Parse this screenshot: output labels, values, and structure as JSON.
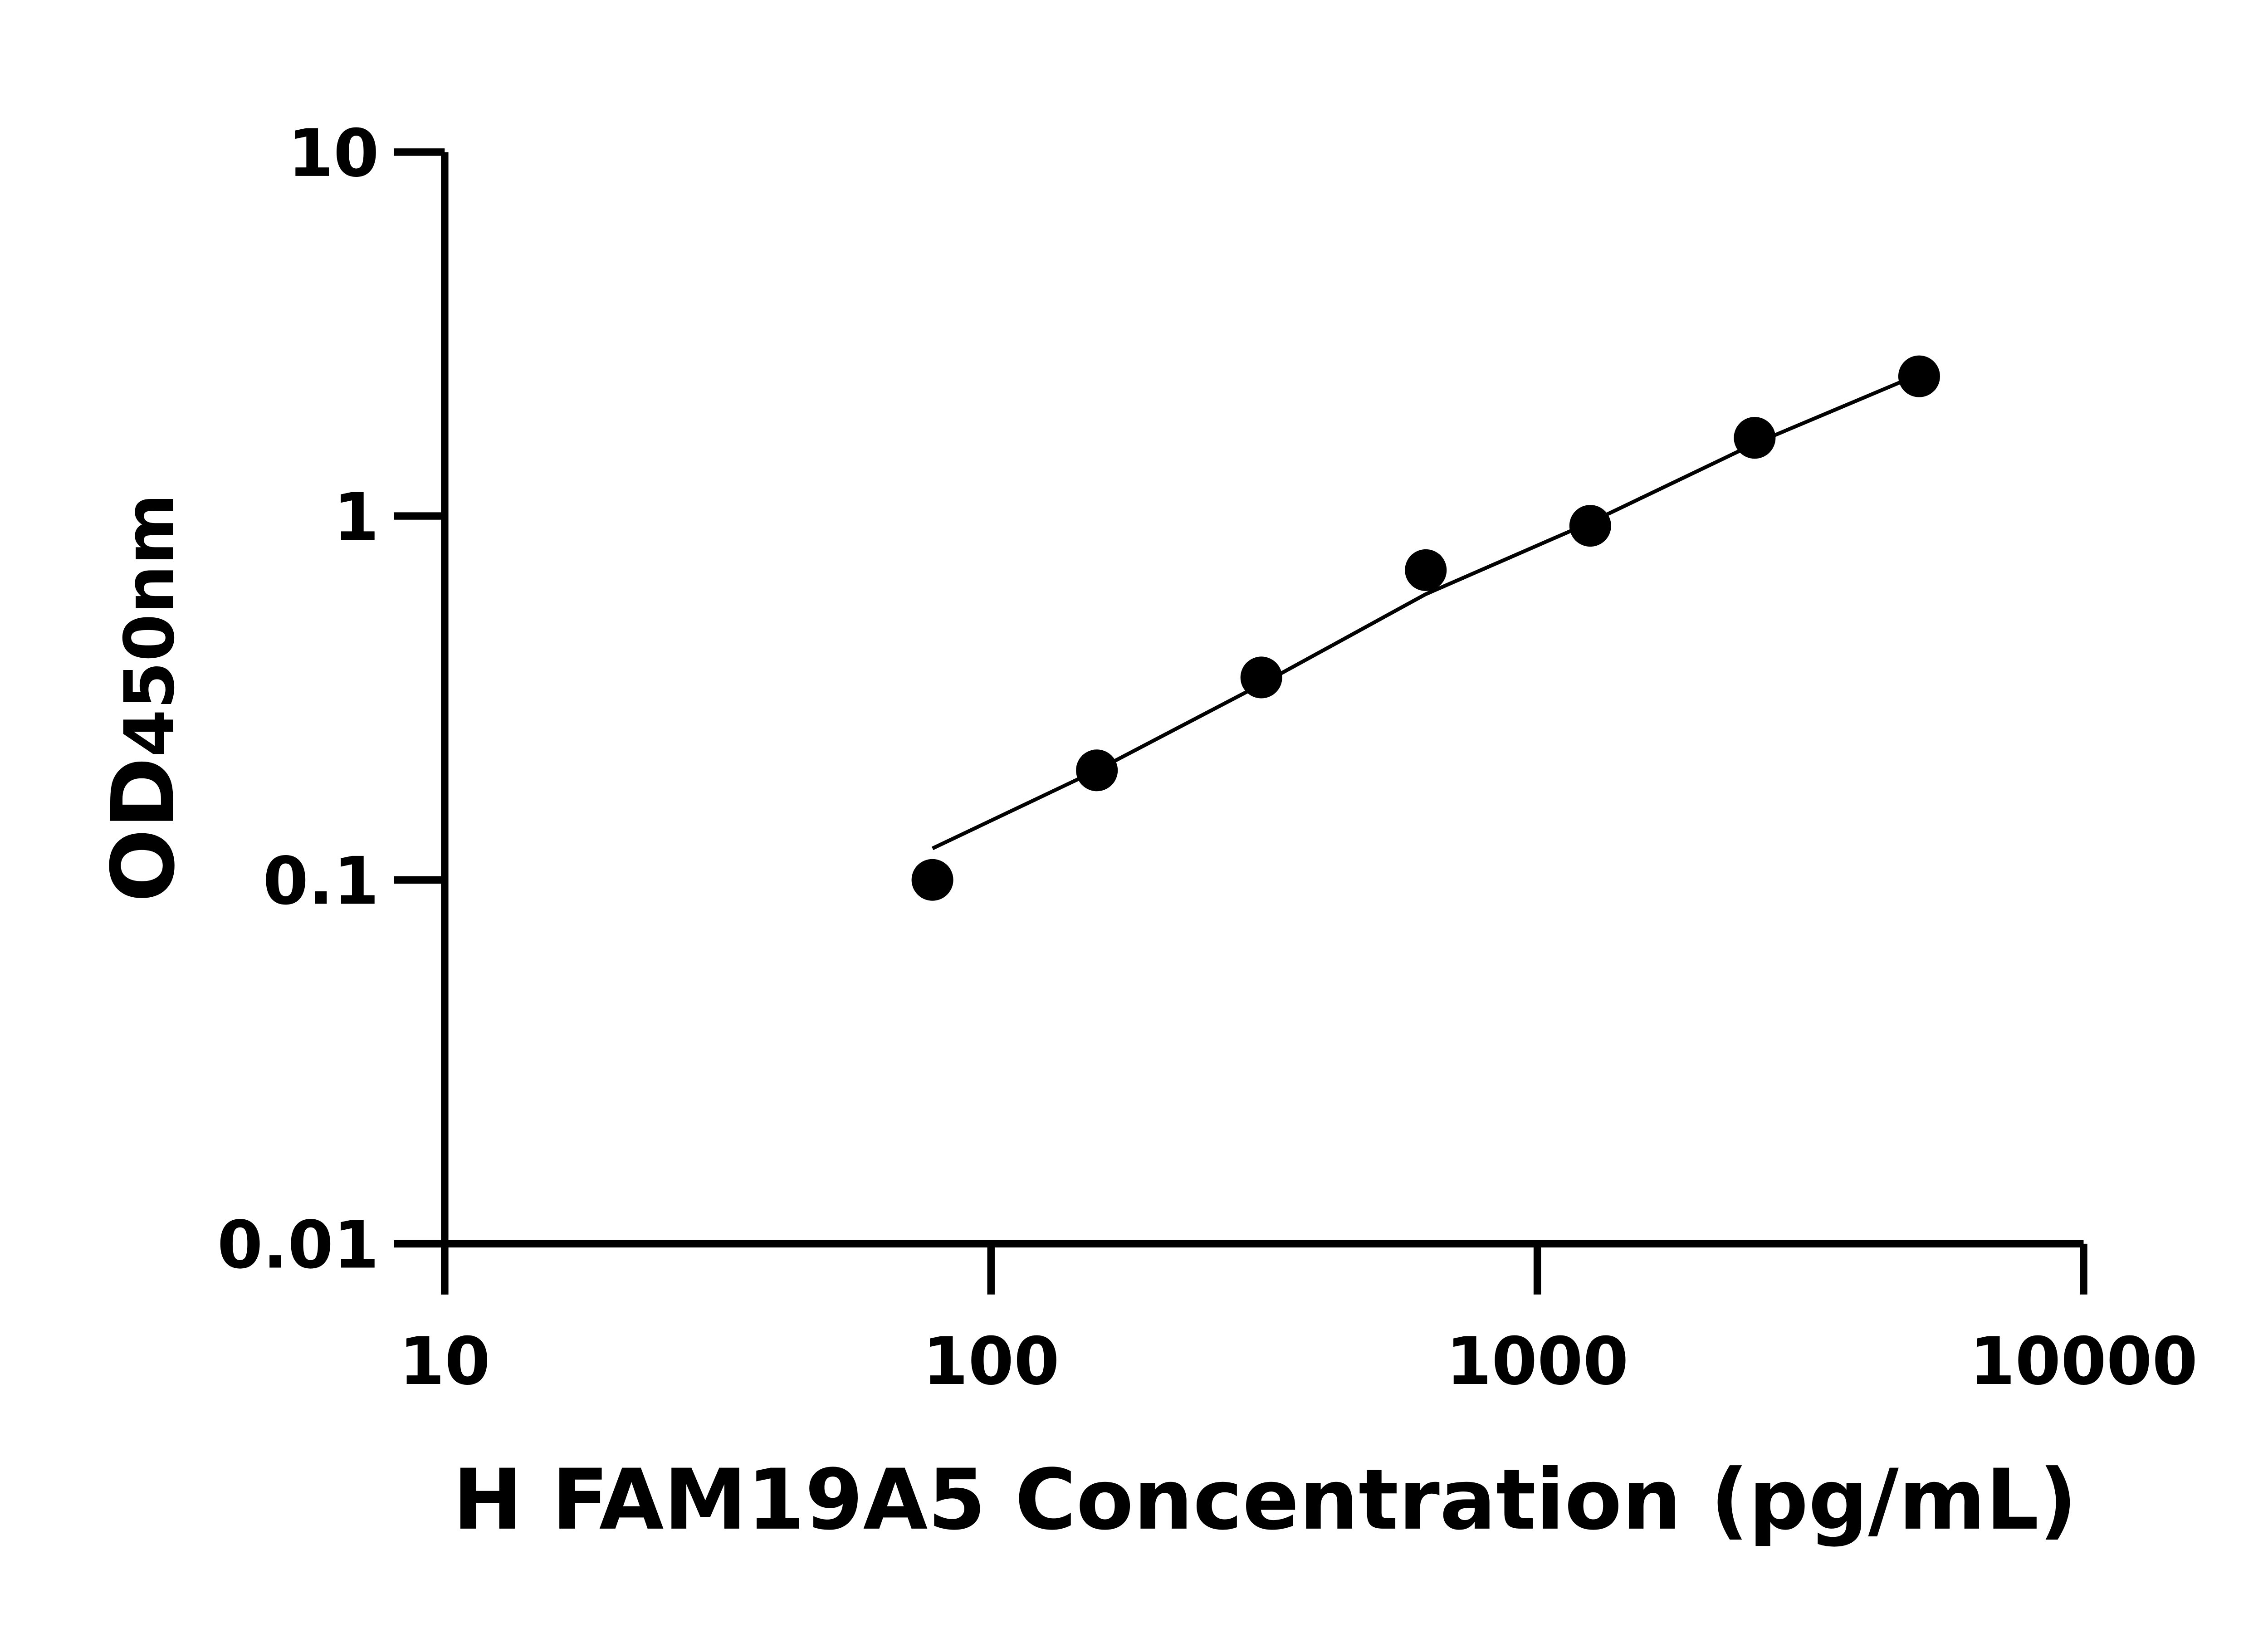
{
  "chart_data": {
    "type": "scatter",
    "xlabel": "H FAM19A5 Concentration (pg/mL)",
    "ylabel_main": "OD",
    "ylabel_sub": "450nm",
    "x_scale": "log",
    "y_scale": "log",
    "xlim": [
      10,
      10000
    ],
    "ylim": [
      0.01,
      10
    ],
    "x_ticks": [
      "10",
      "100",
      "1000",
      "10000"
    ],
    "y_ticks": [
      "0.01",
      "0.1",
      "1",
      "10"
    ],
    "grid": false,
    "legend": "none",
    "points": {
      "x": [
        78.125,
        156.25,
        312.5,
        625,
        1250,
        2500,
        5000
      ],
      "y": [
        0.1,
        0.2,
        0.36,
        0.71,
        0.94,
        1.64,
        2.42
      ]
    },
    "fit_curve": {
      "x": [
        78.125,
        156.25,
        312.5,
        625,
        1250,
        2500,
        5000
      ],
      "y": [
        0.122,
        0.2,
        0.345,
        0.61,
        0.96,
        1.58,
        2.45
      ]
    },
    "colors": {
      "points": "#000000",
      "line": "#000000",
      "axes": "#000000"
    }
  }
}
